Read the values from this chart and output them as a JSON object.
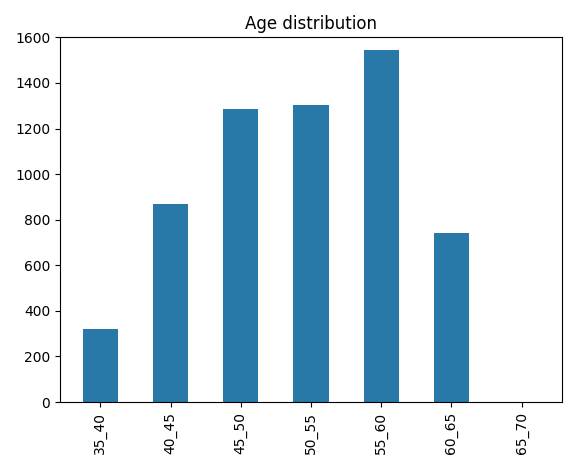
{
  "title": "Age distribution",
  "categories": [
    "35_40",
    "40_45",
    "45_50",
    "50_55",
    "55_60",
    "60_65",
    "65_70"
  ],
  "values": [
    322,
    868,
    1285,
    1305,
    1543,
    740,
    0
  ],
  "bar_color": "#2878a8",
  "ylim": [
    0,
    1600
  ],
  "yticks": [
    0,
    200,
    400,
    600,
    800,
    1000,
    1200,
    1400,
    1600
  ],
  "figsize": [
    5.77,
    4.69
  ],
  "dpi": 100,
  "bar_width": 0.5
}
